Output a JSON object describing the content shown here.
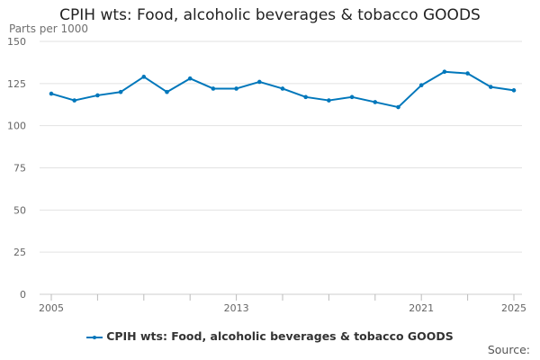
{
  "accent_color": "#0077bb",
  "chart_data": {
    "type": "line",
    "title": "CPIH wts: Food, alcoholic beverages & tobacco GOODS",
    "ylabel": "Parts per 1000",
    "xlabel": "",
    "ylim": [
      0,
      150
    ],
    "yticks": [
      0,
      25,
      50,
      75,
      100,
      125,
      150
    ],
    "xlim": [
      2005,
      2025
    ],
    "xtick_labels": [
      "2005",
      "2013",
      "2021",
      "2025"
    ],
    "grid": true,
    "legend_position": "bottom",
    "x": [
      2005,
      2006,
      2007,
      2008,
      2009,
      2010,
      2011,
      2012,
      2013,
      2014,
      2015,
      2016,
      2017,
      2018,
      2019,
      2020,
      2021,
      2022,
      2023,
      2024,
      2025
    ],
    "series": [
      {
        "name": "CPIH wts: Food, alcoholic beverages & tobacco GOODS",
        "color": "#0077bb",
        "values": [
          119,
          115,
          118,
          120,
          129,
          120,
          128,
          122,
          122,
          126,
          122,
          117,
          115,
          117,
          114,
          111,
          124,
          132,
          131,
          123,
          121
        ]
      }
    ]
  },
  "footer": {
    "source_label": "Source:"
  }
}
